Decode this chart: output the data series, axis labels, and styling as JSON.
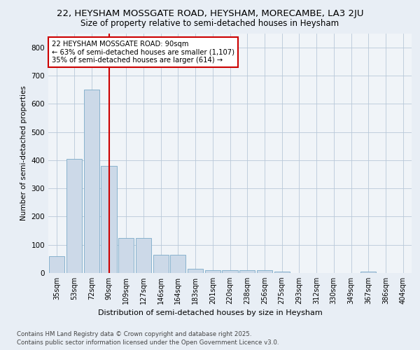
{
  "title_line1": "22, HEYSHAM MOSSGATE ROAD, HEYSHAM, MORECAMBE, LA3 2JU",
  "title_line2": "Size of property relative to semi-detached houses in Heysham",
  "xlabel": "Distribution of semi-detached houses by size in Heysham",
  "ylabel": "Number of semi-detached properties",
  "categories": [
    "35sqm",
    "53sqm",
    "72sqm",
    "90sqm",
    "109sqm",
    "127sqm",
    "146sqm",
    "164sqm",
    "183sqm",
    "201sqm",
    "220sqm",
    "238sqm",
    "256sqm",
    "275sqm",
    "293sqm",
    "312sqm",
    "330sqm",
    "349sqm",
    "367sqm",
    "386sqm",
    "404sqm"
  ],
  "values": [
    60,
    405,
    650,
    380,
    125,
    125,
    65,
    65,
    15,
    10,
    10,
    10,
    10,
    5,
    0,
    0,
    0,
    0,
    5,
    0,
    0
  ],
  "bar_color": "#ccd9e8",
  "bar_edge_color": "#7aaac8",
  "highlight_index": 3,
  "annotation_title": "22 HEYSHAM MOSSGATE ROAD: 90sqm",
  "annotation_line2": "← 63% of semi-detached houses are smaller (1,107)",
  "annotation_line3": "35% of semi-detached houses are larger (614) →",
  "annotation_box_color": "#ffffff",
  "annotation_box_edge": "#cc0000",
  "ylim": [
    0,
    850
  ],
  "yticks": [
    0,
    100,
    200,
    300,
    400,
    500,
    600,
    700,
    800
  ],
  "footer_line1": "Contains HM Land Registry data © Crown copyright and database right 2025.",
  "footer_line2": "Contains public sector information licensed under the Open Government Licence v3.0.",
  "bg_color": "#e8eef5",
  "plot_bg_color": "#f0f4f8"
}
